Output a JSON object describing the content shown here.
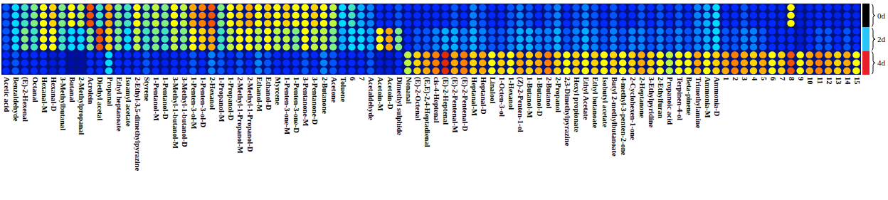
{
  "chart_data": {
    "type": "heatmap",
    "zlim": [
      0,
      1
    ],
    "tick_labels": "x",
    "categories": [
      "Acetic acid",
      "Benzaldehyde",
      "(E)-2-Hexenal",
      "Octanal",
      "Hexanal-M",
      "Hexanal-D",
      "3-Methylbutanal",
      "Butanal",
      "2-Methylpropanal",
      "Acrolein",
      "Diethyl acetal",
      "Propanal",
      "Ethyl heptanoate",
      "Isoamyl acetate",
      "2-Ethyl-3,5-dimethylpyrazine",
      "Styrene",
      "1-Pentanol-M",
      "1-Pentanol-D",
      "3-Methyl-1-butanol-M",
      "3-Methyl-1-butanol-D",
      "1-Penten-3-ol-M",
      "1-Penten-3-ol-D",
      "2-Hexanol",
      "1-Propanol-M",
      "1-Propanol-D",
      "2-Methyl-1-Propanol-M",
      "2-Methyl-1-Propanol-D",
      "Ethanol-M",
      "Ethanol-D",
      "Myrcene",
      "1-Penten-3-one-M",
      "1-Penten-3-one-D",
      "3-Pentanone-M",
      "3-Pentanone-D",
      "2-Butanone",
      "Acetone",
      "Toluene",
      "6",
      "7",
      "Acetaldehyde",
      "Acetoin-M",
      "Acetoin-D",
      "Dimethyl sulphide",
      "Nonanal",
      "(E)-2-Octenal",
      "(E,E)-2,4-Heptadienal",
      "cis-4-Heptenal",
      "(E)-2-Heptenal",
      "(E)-2-Pentenal-M",
      "(E)-2-Pentenal-D",
      "Heptanal-M",
      "Heptanal-D",
      "Linalool",
      "1-Octen-3-ol",
      "1-Hexanol",
      "(Z)-2-Penten-1-ol",
      "1-Butanol-M",
      "1-Butanol-D",
      "2-Butanol",
      "2-Propanol",
      "2,3-Dimethylpyrazine",
      "Hexyl propionate",
      "Ethyl Acetate",
      "Ethyl butanoate",
      "Isobutyl acetate",
      "Butyl 2-methylbutanoate",
      "4-methyl-3-penten-2-one",
      "2-Cyclohexen-1-one",
      "2-Heptanone",
      "3-Ethylpyridine",
      "2-Ethylfuran",
      "Propanoic acid",
      "Terpinen-4-ol",
      "Beta-pinene",
      "Trimethylamine",
      "Ammonia-M",
      "Ammonia-D",
      "1",
      "2",
      "3",
      "4",
      "5",
      "6",
      "7",
      "8",
      "9",
      "10",
      "11",
      "12",
      "13",
      "14",
      "15"
    ],
    "groups": [
      {
        "label": "0d",
        "color": "#000000",
        "values": [
          [
            0.35,
            0.5,
            0.55,
            0.6,
            0.7,
            0.75,
            0.6,
            0.7,
            0.65,
            0.9,
            0.55,
            0.8,
            0.6,
            0.55,
            0.7,
            0.6,
            0.65,
            0.6,
            0.7,
            0.65,
            0.8,
            0.85,
            0.9,
            0.6,
            0.7,
            0.75,
            0.8,
            0.7,
            0.75,
            0.7,
            0.75,
            0.7,
            0.7,
            0.75,
            0.7,
            0.65,
            0.5,
            0.55,
            0.45,
            0.4,
            0.3,
            0.3,
            0.35,
            0.3,
            0.3,
            0.3,
            0.3,
            0.3,
            0.35,
            0.3,
            0.4,
            0.35,
            0.3,
            0.3,
            0.35,
            0.4,
            0.35,
            0.3,
            0.35,
            0.4,
            0.3,
            0.35,
            0.4,
            0.35,
            0.3,
            0.35,
            0.3,
            0.3,
            0.35,
            0.3,
            0.35,
            0.3,
            0.35,
            0.3,
            0.4,
            0.45,
            0.5,
            0.3,
            0.3,
            0.35,
            0.3,
            0.3,
            0.3,
            0.25,
            0.7,
            0.2,
            0.25,
            0.3,
            0.3,
            0.25,
            0.3,
            0.25
          ],
          [
            0.35,
            0.5,
            0.55,
            0.6,
            0.7,
            0.75,
            0.6,
            0.7,
            0.65,
            0.9,
            0.55,
            0.8,
            0.6,
            0.55,
            0.7,
            0.6,
            0.65,
            0.6,
            0.7,
            0.65,
            0.8,
            0.85,
            0.9,
            0.6,
            0.7,
            0.75,
            0.8,
            0.7,
            0.75,
            0.7,
            0.75,
            0.7,
            0.7,
            0.75,
            0.7,
            0.65,
            0.5,
            0.55,
            0.45,
            0.4,
            0.3,
            0.3,
            0.35,
            0.3,
            0.3,
            0.3,
            0.3,
            0.3,
            0.35,
            0.3,
            0.4,
            0.35,
            0.3,
            0.3,
            0.35,
            0.4,
            0.35,
            0.3,
            0.35,
            0.4,
            0.3,
            0.35,
            0.4,
            0.35,
            0.3,
            0.35,
            0.3,
            0.3,
            0.35,
            0.3,
            0.35,
            0.3,
            0.35,
            0.3,
            0.4,
            0.45,
            0.5,
            0.3,
            0.3,
            0.35,
            0.3,
            0.3,
            0.3,
            0.25,
            0.7,
            0.2,
            0.25,
            0.3,
            0.3,
            0.25,
            0.3,
            0.25
          ],
          [
            0.35,
            0.5,
            0.55,
            0.6,
            0.7,
            0.75,
            0.6,
            0.7,
            0.65,
            0.9,
            0.55,
            0.8,
            0.6,
            0.55,
            0.7,
            0.6,
            0.65,
            0.6,
            0.7,
            0.65,
            0.8,
            0.85,
            0.9,
            0.6,
            0.7,
            0.75,
            0.8,
            0.7,
            0.75,
            0.7,
            0.75,
            0.7,
            0.7,
            0.75,
            0.7,
            0.65,
            0.5,
            0.55,
            0.45,
            0.4,
            0.3,
            0.3,
            0.35,
            0.3,
            0.3,
            0.3,
            0.3,
            0.3,
            0.35,
            0.3,
            0.4,
            0.35,
            0.3,
            0.3,
            0.35,
            0.4,
            0.35,
            0.3,
            0.35,
            0.4,
            0.3,
            0.35,
            0.4,
            0.35,
            0.3,
            0.35,
            0.3,
            0.3,
            0.35,
            0.3,
            0.35,
            0.3,
            0.35,
            0.3,
            0.4,
            0.45,
            0.5,
            0.3,
            0.3,
            0.35,
            0.3,
            0.3,
            0.3,
            0.25,
            0.7,
            0.2,
            0.25,
            0.3,
            0.3,
            0.25,
            0.3,
            0.25
          ]
        ]
      },
      {
        "label": "2d",
        "color": "#29c5f6",
        "values": [
          [
            0.35,
            0.5,
            0.6,
            0.55,
            0.7,
            0.7,
            0.55,
            0.5,
            0.5,
            0.6,
            0.9,
            0.75,
            0.6,
            0.5,
            0.65,
            0.55,
            0.6,
            0.55,
            0.65,
            0.6,
            0.7,
            0.75,
            0.8,
            0.55,
            0.65,
            0.7,
            0.7,
            0.65,
            0.7,
            0.65,
            0.65,
            0.6,
            0.7,
            0.65,
            0.65,
            0.6,
            0.45,
            0.5,
            0.5,
            0.45,
            0.7,
            0.8,
            0.6,
            0.3,
            0.35,
            0.35,
            0.4,
            0.45,
            0.45,
            0.4,
            0.45,
            0.4,
            0.35,
            0.35,
            0.4,
            0.45,
            0.45,
            0.4,
            0.4,
            0.45,
            0.35,
            0.4,
            0.45,
            0.4,
            0.35,
            0.4,
            0.35,
            0.4,
            0.4,
            0.35,
            0.4,
            0.35,
            0.4,
            0.35,
            0.4,
            0.45,
            0.5,
            0.35,
            0.35,
            0.4,
            0.4,
            0.35,
            0.3,
            0.3,
            0.3,
            0.2,
            0.3,
            0.35,
            0.35,
            0.3,
            0.35,
            0.3
          ],
          [
            0.35,
            0.5,
            0.6,
            0.55,
            0.7,
            0.7,
            0.55,
            0.5,
            0.5,
            0.6,
            0.9,
            0.75,
            0.6,
            0.5,
            0.65,
            0.55,
            0.6,
            0.55,
            0.65,
            0.6,
            0.7,
            0.75,
            0.8,
            0.55,
            0.65,
            0.7,
            0.7,
            0.65,
            0.7,
            0.65,
            0.65,
            0.6,
            0.7,
            0.65,
            0.65,
            0.6,
            0.45,
            0.5,
            0.5,
            0.45,
            0.7,
            0.8,
            0.6,
            0.3,
            0.35,
            0.35,
            0.4,
            0.45,
            0.45,
            0.4,
            0.45,
            0.4,
            0.35,
            0.35,
            0.4,
            0.45,
            0.45,
            0.4,
            0.4,
            0.45,
            0.35,
            0.4,
            0.45,
            0.4,
            0.35,
            0.4,
            0.35,
            0.4,
            0.4,
            0.35,
            0.4,
            0.35,
            0.4,
            0.35,
            0.4,
            0.45,
            0.5,
            0.35,
            0.35,
            0.4,
            0.4,
            0.35,
            0.3,
            0.3,
            0.3,
            0.2,
            0.3,
            0.35,
            0.35,
            0.3,
            0.35,
            0.3
          ],
          [
            0.35,
            0.5,
            0.6,
            0.55,
            0.7,
            0.7,
            0.55,
            0.5,
            0.5,
            0.6,
            0.9,
            0.75,
            0.6,
            0.5,
            0.65,
            0.55,
            0.6,
            0.55,
            0.65,
            0.6,
            0.7,
            0.75,
            0.8,
            0.55,
            0.65,
            0.7,
            0.7,
            0.65,
            0.7,
            0.65,
            0.65,
            0.6,
            0.7,
            0.65,
            0.65,
            0.6,
            0.45,
            0.5,
            0.5,
            0.45,
            0.7,
            0.8,
            0.6,
            0.3,
            0.35,
            0.35,
            0.4,
            0.45,
            0.45,
            0.4,
            0.45,
            0.4,
            0.35,
            0.35,
            0.4,
            0.45,
            0.45,
            0.4,
            0.4,
            0.45,
            0.35,
            0.4,
            0.45,
            0.4,
            0.35,
            0.4,
            0.35,
            0.4,
            0.4,
            0.35,
            0.4,
            0.35,
            0.4,
            0.35,
            0.4,
            0.45,
            0.5,
            0.35,
            0.35,
            0.4,
            0.4,
            0.35,
            0.3,
            0.3,
            0.3,
            0.2,
            0.3,
            0.35,
            0.35,
            0.3,
            0.35,
            0.3
          ]
        ]
      },
      {
        "label": "4d",
        "color": "#e8202a",
        "values": [
          [
            0.3,
            0.35,
            0.3,
            0.3,
            0.3,
            0.2,
            0.25,
            0.1,
            0.1,
            0.3,
            0.3,
            0.5,
            0.3,
            0.3,
            0.3,
            0.35,
            0.3,
            0.25,
            0.3,
            0.3,
            0.35,
            0.3,
            0.4,
            0.35,
            0.3,
            0.35,
            0.3,
            0.4,
            0.35,
            0.3,
            0.3,
            0.3,
            0.35,
            0.3,
            0.4,
            0.35,
            0.3,
            0.3,
            0.3,
            0.35,
            0.2,
            0.2,
            0.3,
            0.65,
            0.75,
            0.8,
            0.85,
            0.95,
            0.8,
            0.85,
            0.75,
            0.8,
            0.7,
            0.75,
            0.7,
            0.8,
            0.75,
            0.8,
            0.85,
            0.75,
            0.7,
            0.75,
            0.7,
            0.75,
            0.7,
            0.75,
            0.7,
            0.75,
            0.8,
            0.75,
            0.7,
            0.65,
            0.7,
            0.7,
            0.8,
            0.7,
            0.75,
            0.8,
            0.85,
            0.8,
            0.75,
            0.8,
            0.7,
            0.75,
            0.9,
            0.7,
            0.8,
            0.85,
            0.8,
            0.75,
            0.8,
            0.7
          ],
          [
            0.3,
            0.35,
            0.3,
            0.3,
            0.3,
            0.2,
            0.25,
            0.1,
            0.1,
            0.3,
            0.3,
            0.5,
            0.3,
            0.3,
            0.3,
            0.35,
            0.3,
            0.25,
            0.3,
            0.3,
            0.35,
            0.3,
            0.4,
            0.35,
            0.3,
            0.35,
            0.3,
            0.4,
            0.35,
            0.3,
            0.3,
            0.3,
            0.35,
            0.3,
            0.4,
            0.35,
            0.3,
            0.3,
            0.3,
            0.35,
            0.2,
            0.2,
            0.3,
            0.65,
            0.75,
            0.8,
            0.85,
            0.95,
            0.8,
            0.85,
            0.75,
            0.8,
            0.7,
            0.75,
            0.7,
            0.8,
            0.75,
            0.8,
            0.85,
            0.75,
            0.7,
            0.75,
            0.7,
            0.75,
            0.7,
            0.75,
            0.7,
            0.75,
            0.8,
            0.75,
            0.7,
            0.65,
            0.7,
            0.7,
            0.8,
            0.7,
            0.75,
            0.8,
            0.85,
            0.8,
            0.75,
            0.8,
            0.7,
            0.75,
            0.9,
            0.7,
            0.8,
            0.85,
            0.8,
            0.75,
            0.8,
            0.7
          ],
          [
            0.3,
            0.35,
            0.3,
            0.3,
            0.3,
            0.2,
            0.25,
            0.1,
            0.1,
            0.3,
            0.3,
            0.5,
            0.3,
            0.3,
            0.3,
            0.35,
            0.3,
            0.25,
            0.3,
            0.3,
            0.35,
            0.3,
            0.4,
            0.35,
            0.3,
            0.35,
            0.3,
            0.4,
            0.35,
            0.3,
            0.3,
            0.3,
            0.35,
            0.3,
            0.4,
            0.35,
            0.3,
            0.3,
            0.3,
            0.35,
            0.2,
            0.2,
            0.3,
            0.65,
            0.75,
            0.8,
            0.85,
            0.95,
            0.8,
            0.85,
            0.75,
            0.8,
            0.7,
            0.75,
            0.7,
            0.8,
            0.75,
            0.8,
            0.85,
            0.75,
            0.7,
            0.75,
            0.7,
            0.75,
            0.7,
            0.75,
            0.7,
            0.75,
            0.8,
            0.75,
            0.7,
            0.65,
            0.7,
            0.7,
            0.8,
            0.7,
            0.75,
            0.8,
            0.85,
            0.8,
            0.75,
            0.8,
            0.7,
            0.75,
            0.9,
            0.7,
            0.8,
            0.85,
            0.8,
            0.75,
            0.8,
            0.7
          ]
        ]
      }
    ]
  }
}
